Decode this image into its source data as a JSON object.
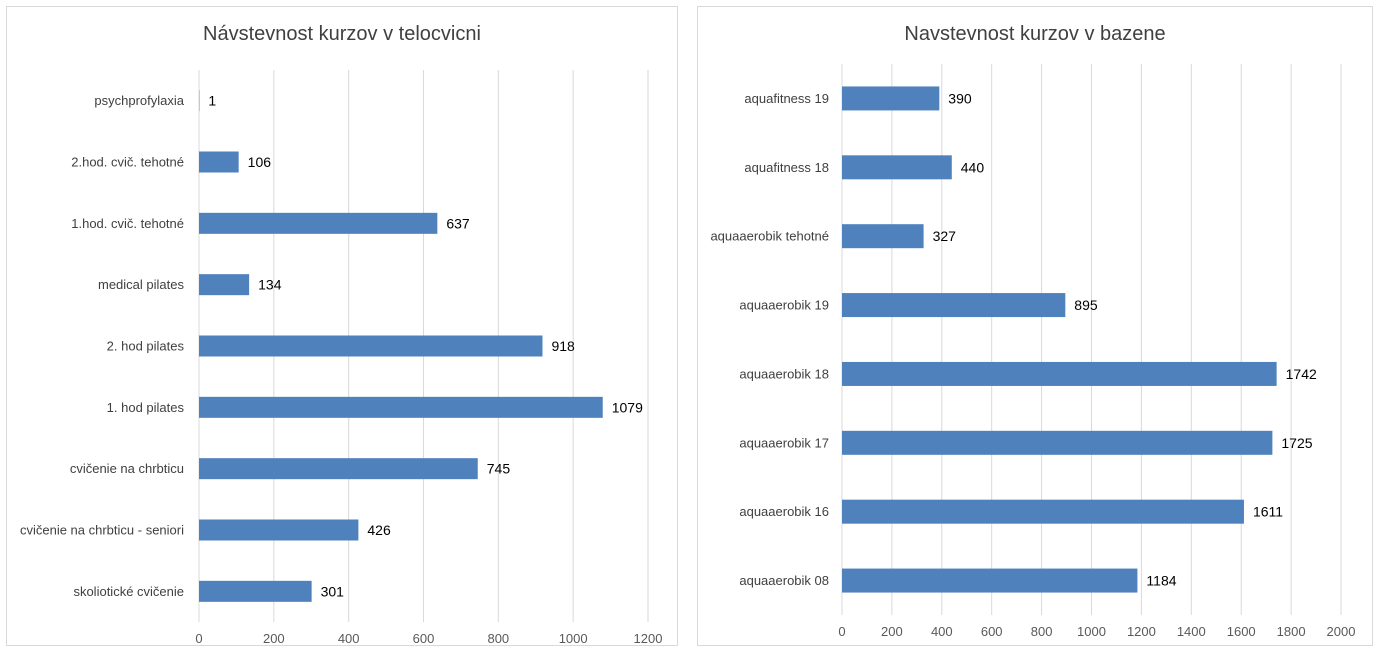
{
  "chart_data": [
    {
      "type": "bar",
      "orientation": "horizontal",
      "title": "Návstevnost kurzov v telocvicni",
      "categories": [
        "psychprofylaxia",
        "2.hod. cvič. tehotné",
        "1.hod. cvič. tehotné",
        "medical pilates",
        "2. hod pilates",
        "1. hod pilates",
        "cvičenie na chrbticu",
        "cvičenie na chrbticu - seniori",
        "skoliotické cvičenie"
      ],
      "values": [
        1,
        106,
        637,
        134,
        918,
        1079,
        745,
        426,
        301
      ],
      "xlim": [
        0,
        1200
      ],
      "xticks": [
        "0",
        "200",
        "400",
        "600",
        "800",
        "1000",
        "1200"
      ],
      "grid": true,
      "data_labels": true,
      "bar_color": "#4f81bd"
    },
    {
      "type": "bar",
      "orientation": "horizontal",
      "title": "Navstevnost kurzov v bazene",
      "categories": [
        "aquafitness 19",
        "aquafitness 18",
        "aquaaerobik tehotné",
        "aquaaerobik 19",
        "aquaaerobik 18",
        "aquaaerobik 17",
        "aquaaerobik 16",
        "aquaaerobik 08"
      ],
      "values": [
        390,
        440,
        327,
        895,
        1742,
        1725,
        1611,
        1184
      ],
      "xlim": [
        0,
        2000
      ],
      "xticks": [
        "0",
        "200",
        "400",
        "600",
        "800",
        "1000",
        "1200",
        "1400",
        "1600",
        "1800",
        "2000"
      ],
      "grid": true,
      "data_labels": true,
      "bar_color": "#4f81bd"
    }
  ]
}
